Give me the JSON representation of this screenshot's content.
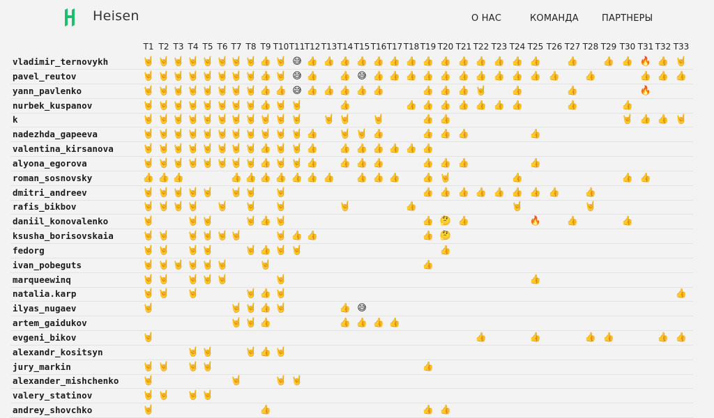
{
  "header": {
    "brand": "Heisen",
    "logo_icon": "heisen-logo-icon",
    "brand_color": "#1fbf6f",
    "nav": [
      "О НАС",
      "КОМАНДА",
      "ПАРТНЕРЫ"
    ]
  },
  "legend": {
    "r": "🤘",
    "t": "👍",
    "s": "😅",
    "f": "🔥",
    "q": "🤔"
  },
  "columns": [
    "T1",
    "T2",
    "T3",
    "T4",
    "T5",
    "T6",
    "T7",
    "T8",
    "T9",
    "T10",
    "T11",
    "T12",
    "T13",
    "T14",
    "T15",
    "T16",
    "T17",
    "T18",
    "T19",
    "T20",
    "T21",
    "T22",
    "T23",
    "T24",
    "T25",
    "T26",
    "T27",
    "T28",
    "T29",
    "T30",
    "T31",
    "T32",
    "T33"
  ],
  "rows": [
    {
      "name": "vladimir_ternovykh",
      "cells": "rrrrrrrrtrstttttttttttttt.t.ttftr"
    },
    {
      "name": "pavel_reutov",
      "cells": "rrrrrrrrtrst.tsttttttttttt.t..ttt"
    },
    {
      "name": "yann_pavlenko",
      "cells": "rrrrrrrrttsttttt..tttr.t..t...f.."
    },
    {
      "name": "nurbek_kuspanov",
      "cells": "rrrrrrrrtrr..t...ttttttt..t..t..."
    },
    {
      "name": "k",
      "cells": "rrrrrrrrrrr.rr.r..tt.........rttr"
    },
    {
      "name": "nadezhda_gapeeva",
      "cells": "rrrrrrrrrrrt.rrt..ttt...t........"
    },
    {
      "name": "valentina_kirsanova",
      "cells": "rrrrrrrrtrrt.tttttt.............."
    },
    {
      "name": "alyona_egorova",
      "cells": "rrrrrrrrtrrt.ttt..ttt...t........"
    },
    {
      "name": "roman_sosnovsky",
      "cells": "ttt...ttttttt.ttt.tr...t.....tt.."
    },
    {
      "name": "dmitri_andreev",
      "cells": "rrrrr.rr.r........tttttttt.t....."
    },
    {
      "name": "rafis_bikbov",
      "cells": "rrrr.r.r.r...r...t.....r...r....."
    },
    {
      "name": "daniil_konovalenko",
      "cells": "r..rr..rtr........tqt...f.t..t..."
    },
    {
      "name": "ksusha_borisovskaia",
      "cells": "rr.rrrr..rtt......tq............."
    },
    {
      "name": "fedorg",
      "cells": "rr.rr..rtrr........t............."
    },
    {
      "name": "ivan_pobeguts",
      "cells": "rrrrrr..r.........t.............."
    },
    {
      "name": "marqueewinq",
      "cells": "rr.rrr...r..............t........"
    },
    {
      "name": "natalia.karp",
      "cells": "rr.r...rtr......................t"
    },
    {
      "name": "ilyas_nugaev",
      "cells": "r.....rrtr...ts.................."
    },
    {
      "name": "artem_gaidukov",
      "cells": "......rrt....tttt................"
    },
    {
      "name": "evgeni_bikov",
      "cells": "r....................t..t..tt..tt"
    },
    {
      "name": "alexandr_kositsyn",
      "cells": "...rr..rtr......................."
    },
    {
      "name": "jury_markin",
      "cells": "rr.rr.............t.............."
    },
    {
      "name": "alexander_mishchenko",
      "cells": "r.....r..rr......................"
    },
    {
      "name": "valery_statinov",
      "cells": "rr.rr............................"
    },
    {
      "name": "andrey_shovchko",
      "cells": "r.......t.........tt............."
    }
  ]
}
